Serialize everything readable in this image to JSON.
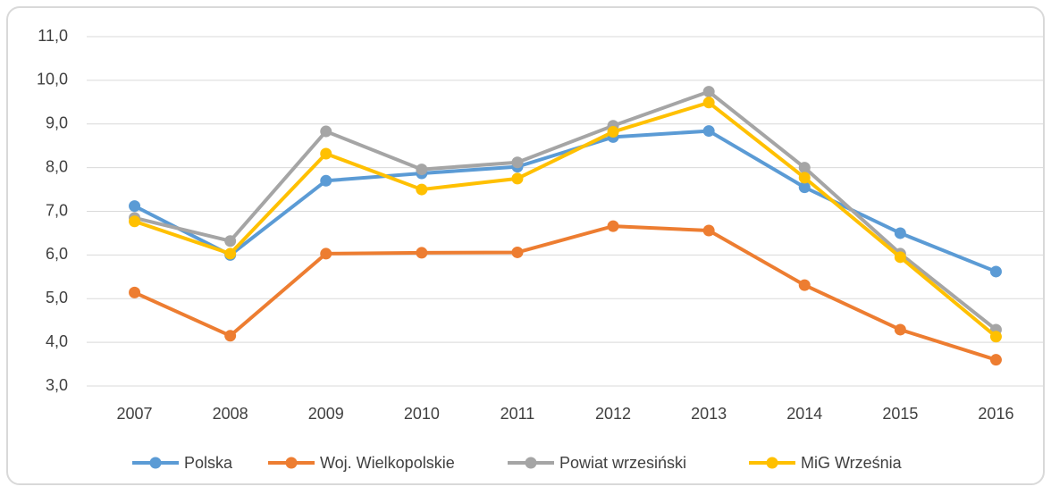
{
  "chart_data": {
    "type": "line",
    "categories": [
      "2007",
      "2008",
      "2009",
      "2010",
      "2011",
      "2012",
      "2013",
      "2014",
      "2015",
      "2016"
    ],
    "series": [
      {
        "name": "Polska",
        "color": "#5b9bd5",
        "values": [
          7.12,
          6.0,
          7.7,
          7.87,
          8.02,
          8.7,
          8.84,
          7.55,
          6.5,
          5.62
        ]
      },
      {
        "name": "Woj. Wielkopolskie",
        "color": "#ed7d31",
        "values": [
          5.14,
          4.15,
          6.03,
          6.05,
          6.06,
          6.66,
          6.56,
          5.31,
          4.29,
          3.6
        ]
      },
      {
        "name": "Powiat wrzesiński",
        "color": "#a5a5a5",
        "values": [
          6.85,
          6.32,
          8.83,
          7.96,
          8.12,
          8.96,
          9.74,
          8.0,
          6.03,
          4.29
        ]
      },
      {
        "name": "MiG Września",
        "color": "#ffc000",
        "values": [
          6.77,
          6.03,
          8.32,
          7.5,
          7.75,
          8.82,
          9.49,
          7.77,
          5.95,
          4.13
        ]
      }
    ],
    "ylim": [
      3,
      11
    ],
    "yticks": [
      {
        "value": 3,
        "label": "3,0"
      },
      {
        "value": 4,
        "label": "4,0"
      },
      {
        "value": 5,
        "label": "5,0"
      },
      {
        "value": 6,
        "label": "6,0"
      },
      {
        "value": 7,
        "label": "7,0"
      },
      {
        "value": 8,
        "label": "8,0"
      },
      {
        "value": 9,
        "label": "9,0"
      },
      {
        "value": 10,
        "label": "10,0"
      },
      {
        "value": 11,
        "label": "11,0"
      }
    ],
    "grid": true,
    "legend": "bottom"
  }
}
